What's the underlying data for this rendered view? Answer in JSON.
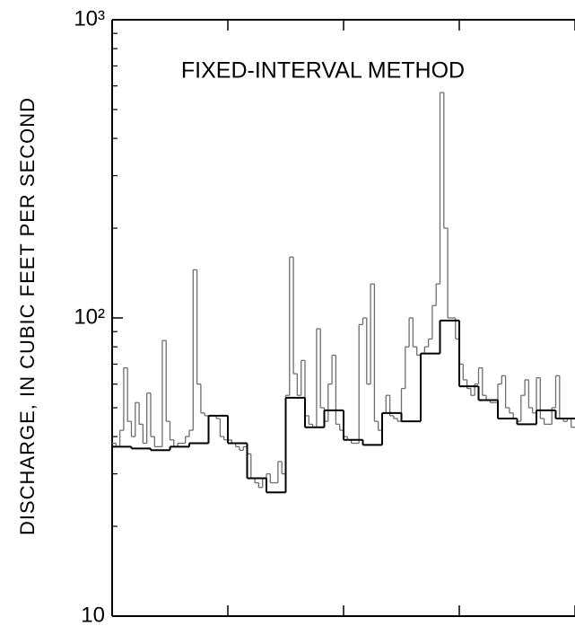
{
  "chart_data": {
    "type": "step",
    "title": "FIXED-INTERVAL METHOD",
    "ylabel": "DISCHARGE, IN CUBIC FEET PER SECOND",
    "ylog": true,
    "ylim": [
      10,
      1000
    ],
    "yticks": [
      {
        "value": 10,
        "label": "10"
      },
      {
        "value": 100,
        "label": "10²"
      },
      {
        "value": 1000,
        "label": "10³"
      }
    ],
    "yminor": [
      20,
      30,
      40,
      50,
      60,
      70,
      80,
      90,
      200,
      300,
      400,
      500,
      600,
      700,
      800,
      900
    ],
    "xlim": [
      0,
      120
    ],
    "xticks": [
      0,
      30,
      60,
      90,
      120
    ],
    "series": [
      {
        "color": "#6e6e6e",
        "x": [
          0,
          1,
          2,
          3,
          4,
          5,
          6,
          7,
          8,
          9,
          10,
          11,
          12,
          13,
          14,
          15,
          16,
          17,
          18,
          19,
          20,
          21,
          22,
          23,
          24,
          25,
          26,
          27,
          28,
          29,
          30,
          31,
          32,
          33,
          34,
          35,
          36,
          37,
          38,
          39,
          40,
          41,
          42,
          43,
          44,
          45,
          46,
          47,
          48,
          49,
          50,
          51,
          52,
          53,
          54,
          55,
          56,
          57,
          58,
          59,
          60,
          61,
          62,
          63,
          64,
          65,
          66,
          67,
          68,
          69,
          70,
          71,
          72,
          73,
          74,
          75,
          76,
          77,
          78,
          79,
          80,
          81,
          82,
          83,
          84,
          85,
          86,
          87,
          88,
          89,
          90,
          91,
          92,
          93,
          94,
          95,
          96,
          97,
          98,
          99,
          100,
          101,
          102,
          103,
          104,
          105,
          106,
          107,
          108,
          109,
          110,
          111,
          112,
          113,
          114,
          115,
          116,
          117,
          118,
          119
        ],
        "values": [
          38,
          37,
          42,
          68,
          45,
          40,
          52,
          44,
          38,
          56,
          40,
          37,
          37,
          84,
          45,
          39,
          37,
          38,
          38,
          40,
          42,
          145,
          60,
          48,
          47,
          47,
          47,
          46,
          40,
          39,
          39,
          38,
          37,
          36,
          37,
          35,
          29,
          28,
          27,
          29,
          30,
          28,
          28,
          33,
          30,
          55,
          160,
          65,
          55,
          72,
          47,
          44,
          43,
          92,
          50,
          45,
          60,
          75,
          44,
          42,
          40,
          39,
          38,
          38,
          95,
          100,
          60,
          130,
          45,
          42,
          48,
          55,
          47,
          46,
          45,
          58,
          80,
          100,
          80,
          75,
          76,
          80,
          85,
          110,
          130,
          570,
          200,
          100,
          100,
          85,
          70,
          62,
          58,
          55,
          60,
          68,
          55,
          53,
          52,
          52,
          60,
          64,
          50,
          48,
          46,
          45,
          55,
          62,
          50,
          48,
          63,
          46,
          44,
          44,
          50,
          64,
          46,
          45,
          46,
          43
        ]
      },
      {
        "color": "#000000",
        "x": [
          0,
          5,
          10,
          15,
          20,
          25,
          30,
          35,
          40,
          45,
          50,
          55,
          60,
          65,
          70,
          75,
          80,
          85,
          90,
          95,
          100,
          105,
          110,
          115
        ],
        "values": [
          37,
          36.5,
          36,
          37,
          38,
          47,
          38,
          29,
          26,
          54,
          43,
          49,
          39,
          37.5,
          48,
          45,
          76,
          98,
          59,
          53,
          46,
          44,
          49,
          46
        ]
      }
    ]
  }
}
